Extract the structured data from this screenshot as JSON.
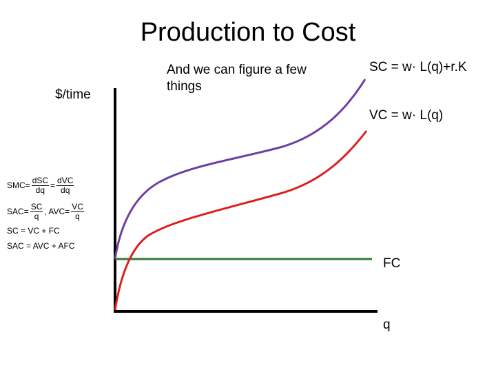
{
  "title": "Production to Cost",
  "y_axis_label": "$/time",
  "x_axis_label": "q",
  "note": "And we can figure a few things",
  "curves": {
    "sc": {
      "label": "SC = w· L(q)+r.K",
      "color": "#6f3fa0"
    },
    "vc": {
      "label": "VC = w· L(q)",
      "color": "#dc1f1f"
    },
    "fc": {
      "label": "FC",
      "color": "#2e7d2e"
    }
  },
  "formulas": {
    "smc": {
      "lhs": "SMC",
      "eq": "=",
      "f1_num": "dSC",
      "f1_den": "dq",
      "eq2": "=",
      "f2_num": "dVC",
      "f2_den": "dq"
    },
    "sac": {
      "lhs": "SAC",
      "eq": "=",
      "f1_num": "SC",
      "f1_den": "q",
      "sep": ", AVC",
      "eq2": "=",
      "f2_num": "VC",
      "f2_den": "q"
    },
    "sc_sum": "SC = VC + FC",
    "sac_sum": "SAC = AVC + AFC"
  },
  "axis_color": "#000000"
}
